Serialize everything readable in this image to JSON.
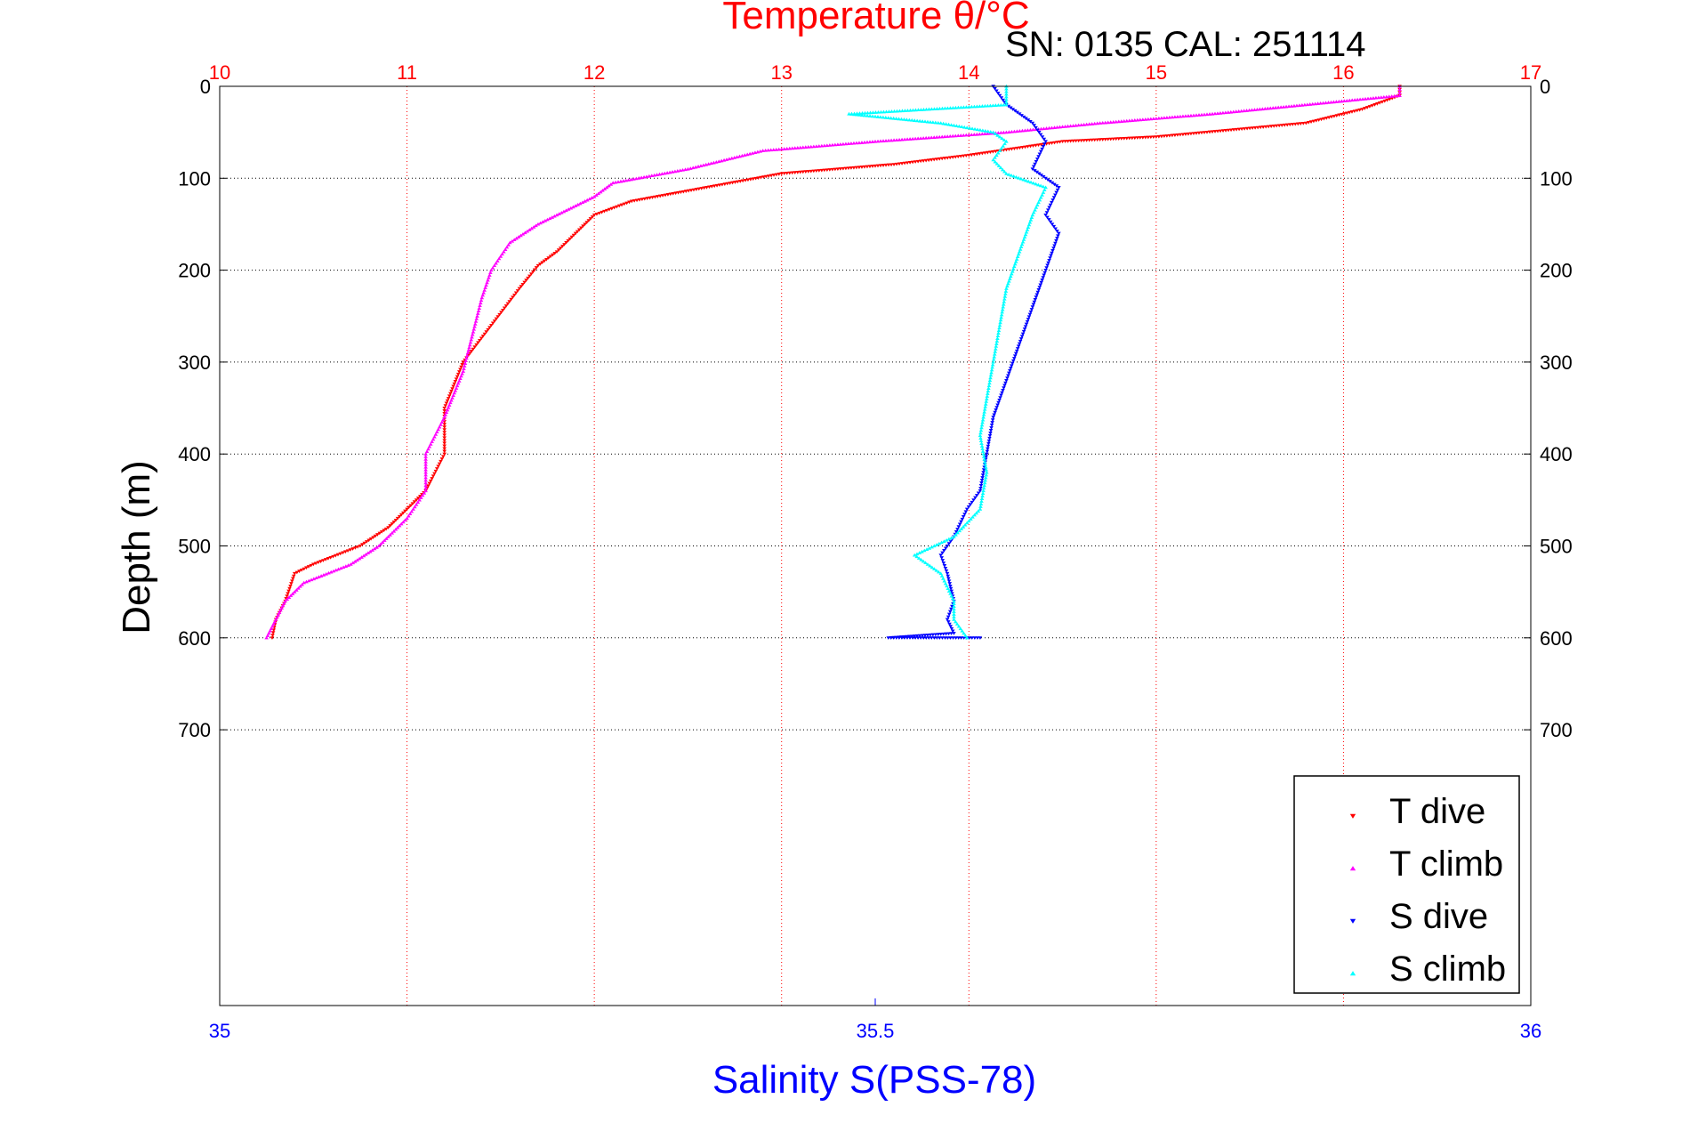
{
  "header": {
    "top_title": "Temperature θ/°C",
    "serial": "SN: 0135  CAL: 251114"
  },
  "chart_data": {
    "type": "scatter",
    "title": "Temperature θ/°C",
    "ylabel": "Depth (m)",
    "xlabel": "Salinity S(PSS-78)",
    "top_axis": {
      "label": "Temperature θ/°C",
      "range": [
        10,
        17
      ],
      "ticks": [
        "10",
        "11",
        "12",
        "13",
        "14",
        "15",
        "16",
        "17"
      ],
      "color": "#ff0000"
    },
    "bottom_axis": {
      "label": "Salinity S(PSS-78)",
      "range": [
        35,
        36
      ],
      "ticks": [
        "35",
        "35.5",
        "36"
      ],
      "color": "#0000ff"
    },
    "y_axis": {
      "range": [
        0,
        1000
      ],
      "reversed": true,
      "ticks": [
        "0",
        "100",
        "200",
        "300",
        "400",
        "500",
        "600",
        "700"
      ]
    },
    "grid": true,
    "legend_position": "bottom-right",
    "series": [
      {
        "name": "T dive",
        "axis": "temperature",
        "color": "#ff0000",
        "marker": "triangle-down",
        "points": [
          [
            16.3,
            0
          ],
          [
            16.3,
            10
          ],
          [
            16.1,
            25
          ],
          [
            15.8,
            40
          ],
          [
            15.0,
            55
          ],
          [
            14.5,
            60
          ],
          [
            14.0,
            75
          ],
          [
            13.6,
            85
          ],
          [
            13.0,
            95
          ],
          [
            12.6,
            110
          ],
          [
            12.2,
            125
          ],
          [
            12.0,
            140
          ],
          [
            11.9,
            160
          ],
          [
            11.8,
            180
          ],
          [
            11.7,
            195
          ],
          [
            11.6,
            220
          ],
          [
            11.45,
            260
          ],
          [
            11.3,
            300
          ],
          [
            11.2,
            350
          ],
          [
            11.2,
            400
          ],
          [
            11.1,
            440
          ],
          [
            10.9,
            480
          ],
          [
            10.75,
            500
          ],
          [
            10.5,
            520
          ],
          [
            10.4,
            530
          ],
          [
            10.35,
            560
          ],
          [
            10.3,
            580
          ],
          [
            10.28,
            600
          ]
        ]
      },
      {
        "name": "T climb",
        "axis": "temperature",
        "color": "#ff00ff",
        "marker": "triangle-up",
        "points": [
          [
            10.25,
            600
          ],
          [
            10.3,
            580
          ],
          [
            10.35,
            560
          ],
          [
            10.45,
            540
          ],
          [
            10.7,
            520
          ],
          [
            10.85,
            500
          ],
          [
            11.0,
            470
          ],
          [
            11.1,
            440
          ],
          [
            11.1,
            400
          ],
          [
            11.2,
            360
          ],
          [
            11.3,
            310
          ],
          [
            11.35,
            270
          ],
          [
            11.4,
            230
          ],
          [
            11.45,
            200
          ],
          [
            11.55,
            170
          ],
          [
            11.7,
            150
          ],
          [
            11.85,
            135
          ],
          [
            12.0,
            120
          ],
          [
            12.1,
            105
          ],
          [
            12.5,
            90
          ],
          [
            12.9,
            70
          ],
          [
            13.5,
            60
          ],
          [
            14.2,
            50
          ],
          [
            14.7,
            40
          ],
          [
            15.3,
            30
          ],
          [
            16.3,
            10
          ],
          [
            16.3,
            0
          ]
        ]
      },
      {
        "name": "S dive",
        "axis": "salinity",
        "color": "#0000ff",
        "marker": "triangle-down",
        "points": [
          [
            35.59,
            0
          ],
          [
            35.6,
            20
          ],
          [
            35.62,
            40
          ],
          [
            35.63,
            60
          ],
          [
            35.62,
            90
          ],
          [
            35.64,
            110
          ],
          [
            35.63,
            140
          ],
          [
            35.64,
            160
          ],
          [
            35.63,
            200
          ],
          [
            35.62,
            240
          ],
          [
            35.61,
            280
          ],
          [
            35.6,
            320
          ],
          [
            35.59,
            360
          ],
          [
            35.585,
            400
          ],
          [
            35.58,
            440
          ],
          [
            35.57,
            460
          ],
          [
            35.56,
            490
          ],
          [
            35.55,
            510
          ],
          [
            35.555,
            530
          ],
          [
            35.56,
            560
          ],
          [
            35.555,
            580
          ],
          [
            35.56,
            595
          ],
          [
            35.51,
            600
          ],
          [
            35.58,
            600
          ]
        ]
      },
      {
        "name": "S climb",
        "axis": "salinity",
        "color": "#00ffff",
        "marker": "triangle-up",
        "points": [
          [
            35.57,
            600
          ],
          [
            35.56,
            580
          ],
          [
            35.56,
            560
          ],
          [
            35.55,
            530
          ],
          [
            35.53,
            510
          ],
          [
            35.56,
            490
          ],
          [
            35.58,
            460
          ],
          [
            35.585,
            420
          ],
          [
            35.58,
            380
          ],
          [
            35.585,
            340
          ],
          [
            35.59,
            300
          ],
          [
            35.595,
            260
          ],
          [
            35.6,
            220
          ],
          [
            35.61,
            180
          ],
          [
            35.62,
            140
          ],
          [
            35.63,
            110
          ],
          [
            35.6,
            95
          ],
          [
            35.59,
            80
          ],
          [
            35.6,
            60
          ],
          [
            35.59,
            50
          ],
          [
            35.55,
            40
          ],
          [
            35.48,
            30
          ],
          [
            35.6,
            20
          ],
          [
            35.6,
            0
          ]
        ]
      }
    ]
  }
}
